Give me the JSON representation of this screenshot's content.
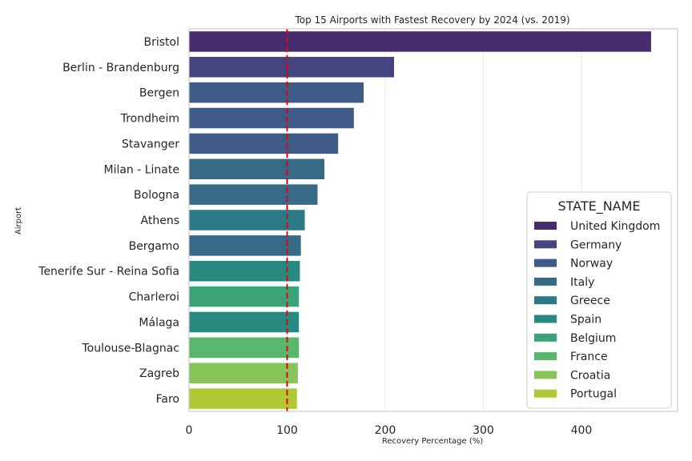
{
  "chart_data": {
    "type": "bar",
    "orientation": "horizontal",
    "title": "Top 15 Airports with Fastest Recovery by 2024 (vs. 2019)",
    "xlabel": "Recovery Percentage (%)",
    "ylabel": "Airport",
    "xlim": [
      0,
      498
    ],
    "xticks": [
      0,
      100,
      200,
      300,
      400
    ],
    "grid": "x",
    "reference_line": {
      "x": 100,
      "color": "#e8000b",
      "style": "dashed"
    },
    "categories": [
      "Bristol",
      "Berlin - Brandenburg",
      "Bergen",
      "Trondheim",
      "Stavanger",
      "Milan - Linate",
      "Bologna",
      "Athens",
      "Bergamo",
      "Tenerife Sur - Reina Sofia",
      "Charleroi",
      "Málaga",
      "Toulouse-Blagnac",
      "Zagreb",
      "Faro"
    ],
    "values": [
      471,
      209,
      178,
      168,
      152,
      138,
      131,
      118,
      114,
      113,
      112,
      112,
      112,
      111,
      110
    ],
    "states": [
      "United Kingdom",
      "Germany",
      "Norway",
      "Norway",
      "Norway",
      "Italy",
      "Italy",
      "Greece",
      "Italy",
      "Spain",
      "Belgium",
      "Spain",
      "France",
      "Croatia",
      "Portugal"
    ],
    "legend": {
      "title": "STATE_NAME",
      "placement": "center-right",
      "entries": [
        {
          "name": "United Kingdom",
          "color": "#472d6e"
        },
        {
          "name": "Germany",
          "color": "#46447f"
        },
        {
          "name": "Norway",
          "color": "#3e5a87"
        },
        {
          "name": "Italy",
          "color": "#366a87"
        },
        {
          "name": "Greece",
          "color": "#2b7a86"
        },
        {
          "name": "Spain",
          "color": "#28897f"
        },
        {
          "name": "Belgium",
          "color": "#3aa378"
        },
        {
          "name": "France",
          "color": "#5ab66a"
        },
        {
          "name": "Croatia",
          "color": "#87c45a"
        },
        {
          "name": "Portugal",
          "color": "#b0c833"
        }
      ]
    }
  }
}
